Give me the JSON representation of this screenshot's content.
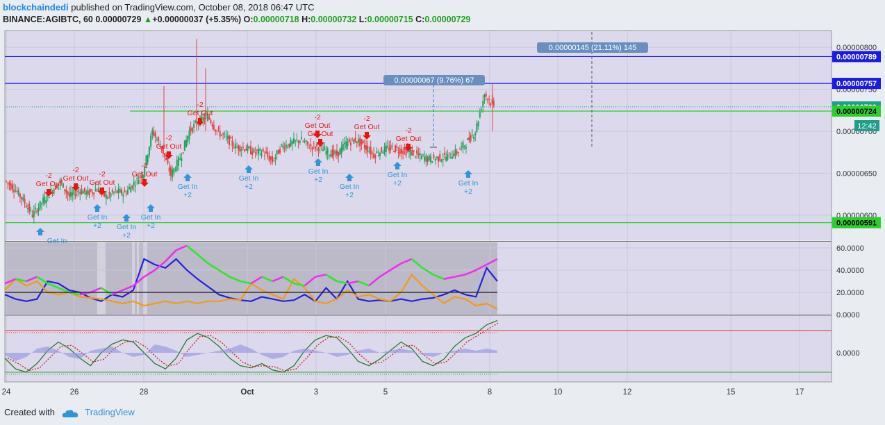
{
  "header": {
    "username": "blockchaindedi",
    "published_text": " published on TradingView.com, October 08, 2018 06:47 UTC",
    "symbol": "BINANCE:AGIBTC, 60",
    "price": "0.00000729",
    "change": "+0.00000037 (+5.35%)",
    "o_label": "O:",
    "o_value": "0.00000718",
    "h_label": "H:",
    "h_value": "0.00000732",
    "l_label": "L:",
    "l_value": "0.00000715",
    "c_label": "C:",
    "c_value": "0.00000729"
  },
  "footer": {
    "created_with": "Created with",
    "brand": "TradingView"
  },
  "colors": {
    "panel_bg": "#dcd9ec",
    "up": "#21a35a",
    "down": "#e0433f",
    "sell": "#e8150f",
    "buy": "#2f95d8",
    "hline_blue": "#1a1ae6",
    "hline_green": "#2ad02a",
    "osc_zone": "#b6b3c2"
  },
  "chart_data": [
    {
      "type": "candlestick",
      "ylim": [
        5.7e-06,
        8.2e-06
      ],
      "x_ticks": [
        "24",
        "26",
        "28",
        "Oct",
        "3",
        "5",
        "8",
        "10",
        "12",
        "15",
        "17"
      ],
      "y_ticks": [
        "0.00000800",
        "0.00000750",
        "0.00000700",
        "0.00000650",
        "0.00000600"
      ],
      "price_labels": [
        "0.00000789",
        "0.00000757",
        "0.00000729",
        "12:42",
        "0.00000724",
        "0.00000591"
      ],
      "horizontal_levels": [
        {
          "value": 7.89e-06,
          "color": "blue"
        },
        {
          "value": 7.57e-06,
          "color": "blue"
        },
        {
          "value": 7.24e-06,
          "color": "green"
        },
        {
          "value": 5.91e-06,
          "color": "green"
        }
      ],
      "measures": [
        {
          "label": "0.00000145 (21.11%) 145"
        },
        {
          "label": "0.00000067 (9.76%) 67"
        }
      ],
      "close_series": [
        6.41e-06,
        6.32e-06,
        6.18e-06,
        6e-06,
        6.15e-06,
        6.28e-06,
        6.4e-06,
        6.22e-06,
        6.3e-06,
        6.26e-06,
        6.31e-06,
        6.22e-06,
        6.28e-06,
        6.26e-06,
        6.38e-06,
        6.5e-06,
        7e-06,
        6.8e-06,
        6.48e-06,
        6.68e-06,
        7e-06,
        7.12e-06,
        7.18e-06,
        7e-06,
        6.92e-06,
        6.81e-06,
        6.8e-06,
        6.75e-06,
        6.75e-06,
        6.64e-06,
        6.82e-06,
        6.85e-06,
        6.9e-06,
        6.82e-06,
        6.81e-06,
        6.75e-06,
        6.72e-06,
        6.86e-06,
        6.9e-06,
        6.82e-06,
        6.72e-06,
        6.78e-06,
        6.8e-06,
        6.77e-06,
        6.75e-06,
        6.7e-06,
        6.67e-06,
        6.68e-06,
        6.7e-06,
        6.75e-06,
        6.86e-06,
        7e-06,
        7.45e-06,
        7.29e-06
      ],
      "signals": [
        {
          "kind": "sell",
          "text": "Get Out",
          "qty": "-2"
        },
        {
          "kind": "sell",
          "text": "Get Out",
          "qty": "-2"
        },
        {
          "kind": "sell",
          "text": "Get Out",
          "qty": "-2"
        },
        {
          "kind": "sell",
          "text": "Get Out",
          "qty": "-2"
        },
        {
          "kind": "sell",
          "text": "Get Out",
          "qty": "-2"
        },
        {
          "kind": "sell",
          "text": "Get Out",
          "qty": "-2"
        },
        {
          "kind": "sell",
          "text": "Get Out",
          "qty": "-2"
        },
        {
          "kind": "sell",
          "text": "Get Out",
          "qty": ""
        },
        {
          "kind": "sell",
          "text": "Get Out",
          "qty": "-2"
        },
        {
          "kind": "sell",
          "text": "Get Out",
          "qty": "-2"
        },
        {
          "kind": "buy",
          "text": "Get In",
          "qty": ""
        },
        {
          "kind": "buy",
          "text": "Get In",
          "qty": "+2"
        },
        {
          "kind": "buy",
          "text": "Get In",
          "qty": "+2"
        },
        {
          "kind": "buy",
          "text": "Get In",
          "qty": "+2"
        },
        {
          "kind": "buy",
          "text": "Get In",
          "qty": "+2"
        },
        {
          "kind": "buy",
          "text": "Get In",
          "qty": "+2"
        },
        {
          "kind": "buy",
          "text": "Get In",
          "qty": "+2"
        },
        {
          "kind": "buy",
          "text": "Get In",
          "qty": "+2"
        },
        {
          "kind": "buy",
          "text": "Get In",
          "qty": "+2"
        },
        {
          "kind": "buy",
          "text": "Get In",
          "qty": "+2"
        }
      ]
    },
    {
      "type": "line",
      "ylim": [
        0,
        65
      ],
      "y_ticks": [
        "60.0000",
        "40.0000",
        "20.0000",
        "0.0000"
      ],
      "series": [
        {
          "color": "blue",
          "values": [
            18,
            14,
            12,
            14,
            30,
            28,
            22,
            20,
            15,
            12,
            18,
            16,
            22,
            50,
            45,
            42,
            50,
            40,
            32,
            25,
            18,
            15,
            13,
            12,
            16,
            14,
            12,
            13,
            18,
            12,
            24,
            14,
            30,
            14,
            12,
            13,
            12,
            14,
            12,
            14,
            15,
            18,
            22,
            18,
            16,
            42,
            30
          ]
        },
        {
          "color": "orange",
          "values": [
            22,
            32,
            26,
            30,
            20,
            18,
            20,
            16,
            15,
            14,
            12,
            10,
            12,
            8,
            10,
            12,
            10,
            12,
            10,
            12,
            12,
            14,
            13,
            28,
            22,
            18,
            14,
            32,
            24,
            12,
            10,
            14,
            22,
            16,
            18,
            14,
            12,
            20,
            36,
            26,
            18,
            10,
            16,
            14,
            8,
            10,
            5
          ]
        },
        {
          "color": "trend",
          "values": [
            28,
            32,
            30,
            34,
            28,
            24,
            20,
            18,
            20,
            24,
            18,
            22,
            26,
            34,
            40,
            48,
            58,
            62,
            54,
            46,
            40,
            34,
            30,
            28,
            34,
            30,
            34,
            28,
            26,
            34,
            36,
            30,
            28,
            30,
            26,
            34,
            40,
            46,
            50,
            42,
            36,
            32,
            34,
            36,
            40,
            45,
            50
          ]
        },
        {
          "color": "black",
          "values": [
            20,
            20
          ]
        }
      ]
    },
    {
      "type": "line",
      "y_ticks": [
        "0.0000"
      ],
      "series": [
        {
          "color": "oscillator",
          "values": [
            -5,
            -15,
            -18,
            -10,
            2,
            10,
            4,
            -5,
            -12,
            0,
            8,
            12,
            10,
            0,
            -10,
            -15,
            -5,
            12,
            18,
            14,
            6,
            -5,
            -12,
            -14,
            -10,
            -16,
            -18,
            -12,
            2,
            12,
            16,
            14,
            4,
            -8,
            -12,
            -6,
            2,
            10,
            4,
            -8,
            -12,
            -6,
            6,
            14,
            18,
            26,
            30
          ]
        },
        {
          "color": "histogram",
          "values": [
            -1,
            -4,
            -2,
            2,
            3,
            1,
            -2,
            -3,
            1,
            2,
            3,
            0,
            -2,
            -1,
            4,
            3,
            1,
            -2,
            -1,
            0,
            1,
            2,
            4,
            2,
            -1,
            -3,
            -2,
            1,
            2,
            1,
            0,
            -2,
            -1,
            1,
            2,
            0,
            1,
            2,
            1,
            -1,
            -2,
            0,
            1,
            2,
            1,
            2,
            1
          ]
        }
      ]
    }
  ]
}
